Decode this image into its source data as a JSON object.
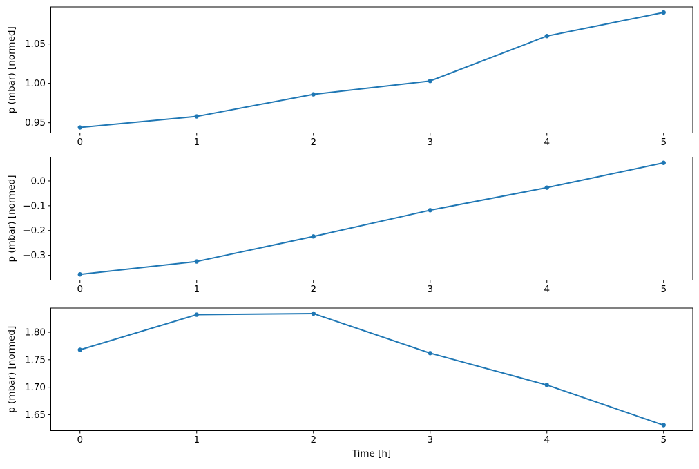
{
  "figure": {
    "xlabel": "Time [h]",
    "background": "#ffffff",
    "line_color": "#1f77b4",
    "axis_color": "#000000",
    "title": "",
    "legend": null
  },
  "chart_data": [
    {
      "type": "line",
      "ylabel": "p (mbar) [normed]",
      "x": [
        0,
        1,
        2,
        3,
        4,
        5
      ],
      "values": [
        0.944,
        0.958,
        0.986,
        1.003,
        1.06,
        1.09
      ],
      "xlim": [
        -0.25,
        5.25
      ],
      "ylim": [
        0.937,
        1.097
      ],
      "xticks": [
        0,
        1,
        2,
        3,
        4,
        5
      ],
      "xtick_labels": [
        "0",
        "1",
        "2",
        "3",
        "4",
        "5"
      ],
      "yticks": [
        0.95,
        1.0,
        1.05
      ],
      "ytick_labels": [
        "0.95",
        "1.00",
        "1.05"
      ],
      "marker": "point",
      "grid": false
    },
    {
      "type": "line",
      "ylabel": "p (mbar) [normed]",
      "x": [
        0,
        1,
        2,
        3,
        4,
        5
      ],
      "values": [
        -0.377,
        -0.325,
        -0.224,
        -0.118,
        -0.027,
        0.073
      ],
      "xlim": [
        -0.25,
        5.25
      ],
      "ylim": [
        -0.4,
        0.096
      ],
      "xticks": [
        0,
        1,
        2,
        3,
        4,
        5
      ],
      "xtick_labels": [
        "0",
        "1",
        "2",
        "3",
        "4",
        "5"
      ],
      "yticks": [
        0.0,
        -0.1,
        -0.2,
        -0.3
      ],
      "ytick_labels": [
        "0.0",
        "−0.1",
        "−0.2",
        "−0.3"
      ],
      "marker": "point",
      "grid": false
    },
    {
      "type": "line",
      "ylabel": "p (mbar) [normed]",
      "x": [
        0,
        1,
        2,
        3,
        4,
        5
      ],
      "values": [
        1.768,
        1.832,
        1.834,
        1.762,
        1.704,
        1.631
      ],
      "xlim": [
        -0.25,
        5.25
      ],
      "ylim": [
        1.621,
        1.844
      ],
      "xticks": [
        0,
        1,
        2,
        3,
        4,
        5
      ],
      "xtick_labels": [
        "0",
        "1",
        "2",
        "3",
        "4",
        "5"
      ],
      "yticks": [
        1.65,
        1.7,
        1.75,
        1.8
      ],
      "ytick_labels": [
        "1.65",
        "1.70",
        "1.75",
        "1.80"
      ],
      "marker": "point",
      "grid": false
    }
  ]
}
